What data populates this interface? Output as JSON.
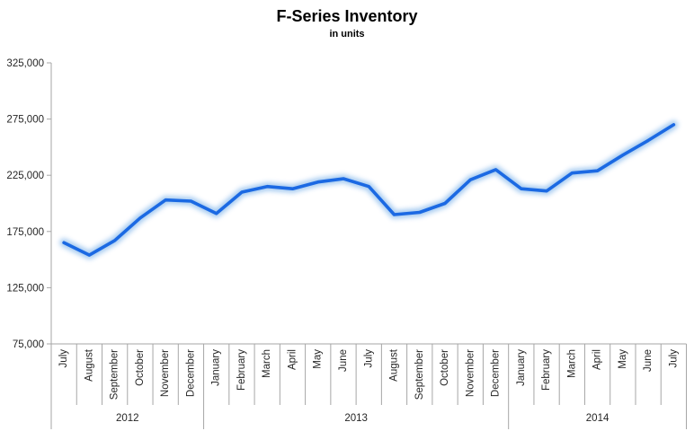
{
  "title": "F-Series Inventory",
  "subtitle": "in units",
  "chart_data": {
    "type": "line",
    "title": "F-Series Inventory",
    "subtitle": "in units",
    "categories": [
      "July",
      "August",
      "September",
      "October",
      "November",
      "December",
      "January",
      "February",
      "March",
      "April",
      "May",
      "June",
      "July",
      "August",
      "September",
      "October",
      "November",
      "December",
      "January",
      "February",
      "March",
      "April",
      "May",
      "June",
      "July"
    ],
    "year_groups": [
      {
        "label": "2012",
        "count": 6
      },
      {
        "label": "2013",
        "count": 12
      },
      {
        "label": "2014",
        "count": 7
      }
    ],
    "series": [
      {
        "name": "F-Series Inventory",
        "values": [
          165000,
          154000,
          167000,
          187000,
          203000,
          202000,
          191000,
          210000,
          215000,
          213000,
          219000,
          222000,
          215000,
          190000,
          192000,
          200000,
          221000,
          230000,
          213000,
          211000,
          227000,
          229000,
          243000,
          256000,
          270000
        ]
      }
    ],
    "ylim": [
      75000,
      325000
    ],
    "ytick_interval": 50000,
    "yticks": [
      {
        "value": 75000,
        "label": "75,000"
      },
      {
        "value": 125000,
        "label": "125,000"
      },
      {
        "value": 175000,
        "label": "175,000"
      },
      {
        "value": 225000,
        "label": "225,000"
      },
      {
        "value": 275000,
        "label": "275,000"
      },
      {
        "value": 325000,
        "label": "325,000"
      }
    ],
    "grid": false,
    "legend": false,
    "colors": {
      "line": "#1b69e3",
      "glow": "#a3c9f0",
      "axis": "#a6a6a6",
      "text": "#262626",
      "title_text": "#000000"
    }
  }
}
